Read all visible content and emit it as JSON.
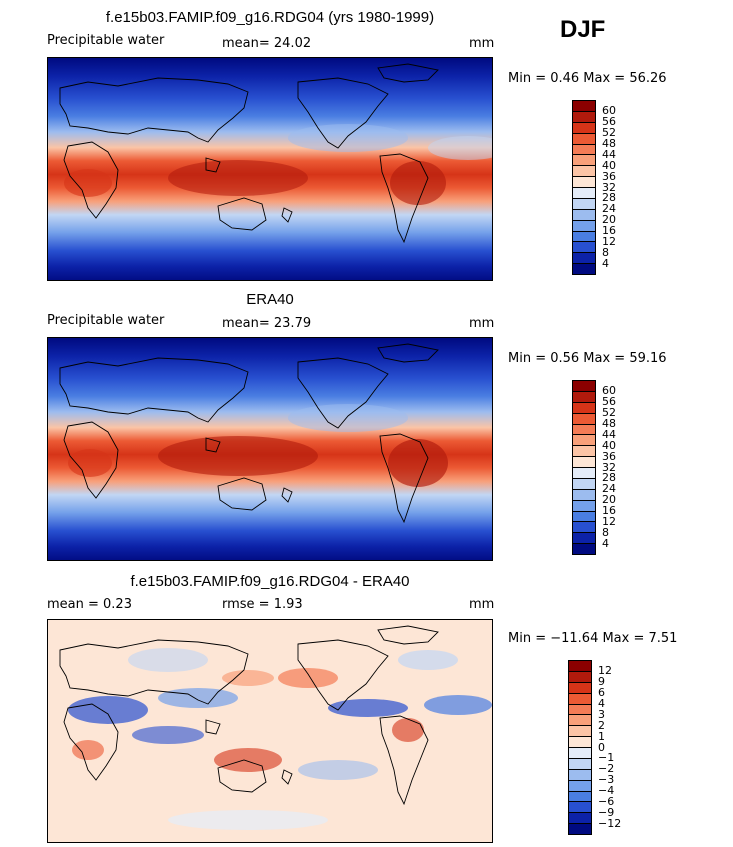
{
  "season": "DJF",
  "panels": [
    {
      "title": "f.e15b03.FAMIP.f09_g16.RDG04 (yrs 1980-1999)",
      "left_label": "Precipitable water",
      "mid_label": "mean=  24.02",
      "units": "mm",
      "minmax": "Min =    0.46 Max =   56.26",
      "levels": [
        "60",
        "56",
        "52",
        "48",
        "44",
        "40",
        "36",
        "32",
        "28",
        "24",
        "20",
        "16",
        "12",
        "8",
        "4"
      ]
    },
    {
      "title": "ERA40",
      "left_label": "Precipitable water",
      "mid_label": "mean=  23.79",
      "units": "mm",
      "minmax": "Min =    0.56 Max =   59.16",
      "levels": [
        "60",
        "56",
        "52",
        "48",
        "44",
        "40",
        "36",
        "32",
        "28",
        "24",
        "20",
        "16",
        "12",
        "8",
        "4"
      ]
    },
    {
      "title": "f.e15b03.FAMIP.f09_g16.RDG04 - ERA40",
      "left_label": "mean =    0.23",
      "mid_label": "rmse =    1.93",
      "units": "mm",
      "minmax": "Min = −11.64 Max =    7.51",
      "levels": [
        "12",
        "9",
        "6",
        "4",
        "3",
        "2",
        "1",
        "0",
        "−1",
        "−2",
        "−3",
        "−4",
        "−6",
        "−9",
        "−12"
      ]
    }
  ],
  "colors": {
    "abs_scale": [
      "#8b0000",
      "#b01a0c",
      "#d63418",
      "#ec5a34",
      "#f47c56",
      "#f8a07a",
      "#fbc4a6",
      "#fde6d6",
      "#e4ecf8",
      "#c2d6f4",
      "#9cbcef",
      "#74a0ea",
      "#4a7ee2",
      "#2850d0",
      "#0c22a8",
      "#000a80"
    ],
    "diff_scale": [
      "#8b0000",
      "#b01a0c",
      "#d63418",
      "#ec5a34",
      "#f47c56",
      "#f8a07a",
      "#fbc4a6",
      "#fde6d6",
      "#e4ecf8",
      "#c2d6f4",
      "#9cbcef",
      "#74a0ea",
      "#4a7ee2",
      "#2850d0",
      "#0c22a8",
      "#000a80"
    ]
  }
}
